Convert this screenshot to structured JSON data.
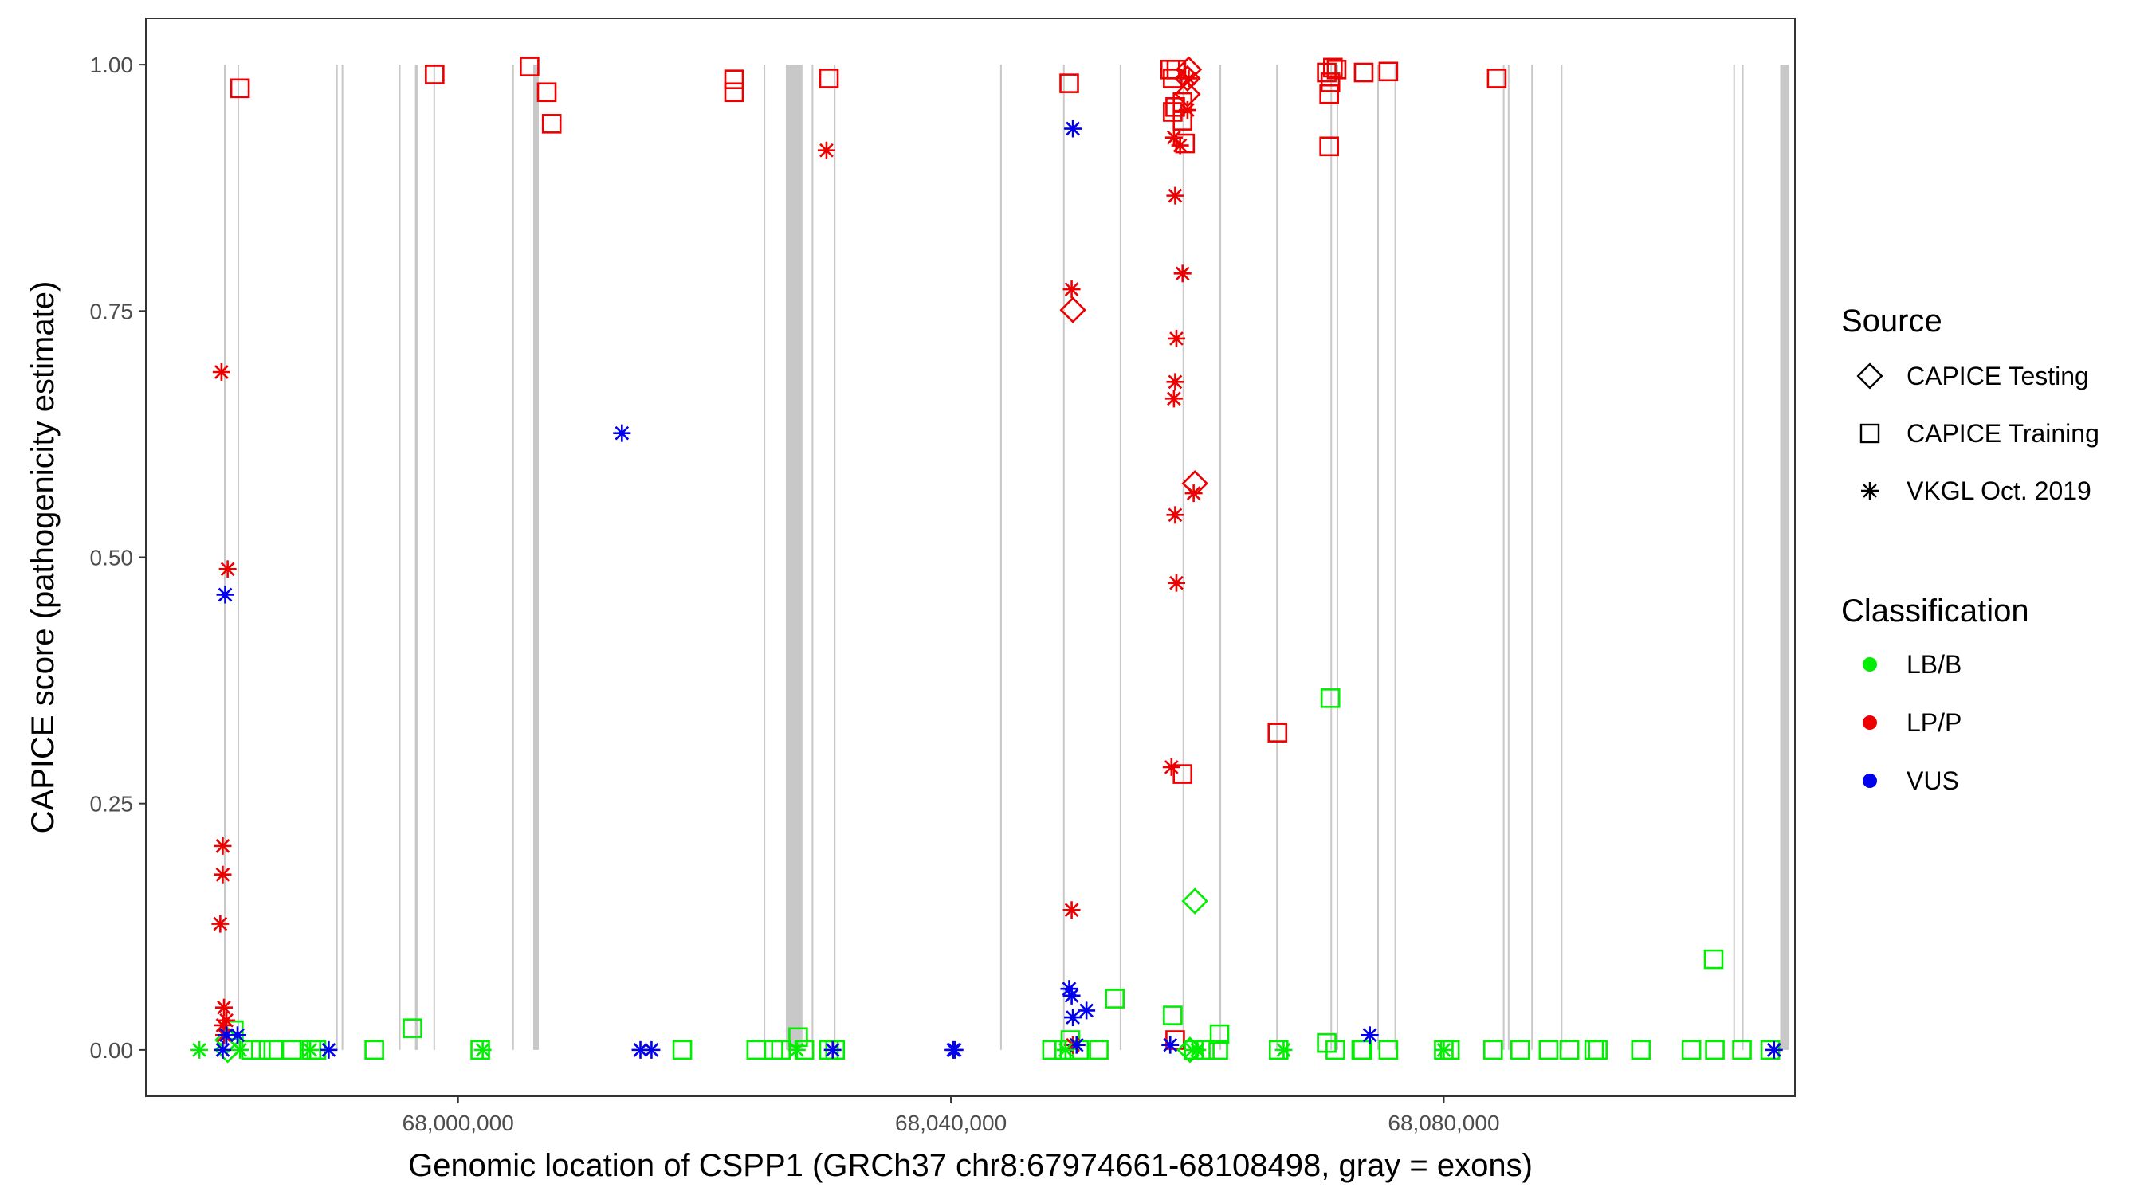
{
  "chart_data": {
    "type": "scatter",
    "xlabel": "Genomic location of CSPP1 (GRCh37 chr8:67974661-68108498, gray = exons)",
    "ylabel": "CAPICE score (pathogenicity estimate)",
    "xlim": [
      67974661,
      68108498
    ],
    "ylim": [
      -0.047,
      1.047
    ],
    "x_ticks": [
      68000000,
      68040000,
      68080000
    ],
    "x_tick_labels": [
      "68,000,000",
      "68,040,000",
      "68,080,000"
    ],
    "y_ticks": [
      0,
      0.25,
      0.5,
      0.75,
      1
    ],
    "y_tick_labels": [
      "0.00",
      "0.25",
      "0.50",
      "0.75",
      "1.00"
    ],
    "grid": false,
    "background": "#ffffff",
    "exons": [
      [
        67981000,
        67981050
      ],
      [
        67982100,
        67982150
      ],
      [
        67990100,
        67990150
      ],
      [
        67990550,
        67990600
      ],
      [
        67995200,
        67995250
      ],
      [
        67996500,
        67996750
      ],
      [
        67998000,
        67998050
      ],
      [
        68004400,
        68004450
      ],
      [
        68006100,
        68006550
      ],
      [
        68024800,
        68024850
      ],
      [
        68026600,
        68027950
      ],
      [
        68028700,
        68028750
      ],
      [
        68030500,
        68030550
      ],
      [
        68044000,
        68044050
      ],
      [
        68049100,
        68049150
      ],
      [
        68053700,
        68053750
      ],
      [
        68058800,
        68058850
      ],
      [
        68061800,
        68061850
      ],
      [
        68066400,
        68066450
      ],
      [
        68070800,
        68070850
      ],
      [
        68071300,
        68071350
      ],
      [
        68074600,
        68074650
      ],
      [
        68076000,
        68076050
      ],
      [
        68084800,
        68084850
      ],
      [
        68085200,
        68085250
      ],
      [
        68087100,
        68087150
      ],
      [
        68089500,
        68089550
      ],
      [
        68103500,
        68103550
      ],
      [
        68104200,
        68104250
      ],
      [
        68107300,
        68108000
      ]
    ],
    "exon_color": "#c8c8c8",
    "legend": {
      "position": "right",
      "source_title": "Source",
      "source_entries": [
        {
          "label": "CAPICE Testing",
          "shape": "diamond"
        },
        {
          "label": "CAPICE Training",
          "shape": "square"
        },
        {
          "label": "VKGL Oct. 2019",
          "shape": "asterisk"
        }
      ],
      "class_title": "Classification",
      "class_entries": [
        {
          "label": "LB/B",
          "color": "#00ee00"
        },
        {
          "label": "LP/P",
          "color": "#ee0000"
        },
        {
          "label": "VUS",
          "color": "#0000ee"
        }
      ]
    },
    "series": [
      {
        "source": "CAPICE Training",
        "classification": "LP/P",
        "points": [
          [
            67982300,
            0.976
          ],
          [
            67998100,
            0.99
          ],
          [
            68005800,
            0.998
          ],
          [
            68007200,
            0.972
          ],
          [
            68007600,
            0.94
          ],
          [
            68022400,
            0.985
          ],
          [
            68022400,
            0.972
          ],
          [
            68030100,
            0.986
          ],
          [
            68049600,
            0.981
          ],
          [
            68057800,
            0.995
          ],
          [
            68058000,
            0.986
          ],
          [
            68058300,
            0.995
          ],
          [
            68058200,
            0.957
          ],
          [
            68058000,
            0.952
          ],
          [
            68058800,
            0.962
          ],
          [
            68058800,
            0.943
          ],
          [
            68059000,
            0.92
          ],
          [
            68066500,
            0.322
          ],
          [
            68058800,
            0.28
          ],
          [
            68058200,
            0.01
          ],
          [
            68070500,
            0.992
          ],
          [
            68070700,
            0.97
          ],
          [
            68070800,
            0.982
          ],
          [
            68071000,
            0.997
          ],
          [
            68071300,
            0.995
          ],
          [
            68073500,
            0.992
          ],
          [
            68075500,
            0.993
          ],
          [
            68084300,
            0.986
          ],
          [
            68070700,
            0.917
          ]
        ]
      },
      {
        "source": "CAPICE Training",
        "classification": "LB/B",
        "points": [
          [
            67981800,
            0.02
          ],
          [
            67983200,
            0.0
          ],
          [
            67984000,
            0.0
          ],
          [
            67985000,
            0.0
          ],
          [
            67986500,
            0.0
          ],
          [
            67988100,
            0.0
          ],
          [
            67988500,
            0.0
          ],
          [
            67993200,
            0.0
          ],
          [
            67996300,
            0.022
          ],
          [
            68001800,
            0.0
          ],
          [
            68018200,
            0.0
          ],
          [
            68024200,
            0.0
          ],
          [
            68025600,
            0.0
          ],
          [
            68026200,
            0.0
          ],
          [
            68027600,
            0.013
          ],
          [
            68028100,
            0.0
          ],
          [
            68030100,
            0.0
          ],
          [
            68030600,
            0.0
          ],
          [
            68048200,
            0.0
          ],
          [
            68049200,
            0.0
          ],
          [
            68049700,
            0.01
          ],
          [
            68050400,
            0.0
          ],
          [
            68052000,
            0.0
          ],
          [
            68053300,
            0.052
          ],
          [
            68058000,
            0.035
          ],
          [
            68059700,
            0.0
          ],
          [
            68060600,
            0.0
          ],
          [
            68061700,
            0.0
          ],
          [
            68061800,
            0.016
          ],
          [
            68066600,
            0.0
          ],
          [
            68070500,
            0.007
          ],
          [
            68070800,
            0.357
          ],
          [
            68071200,
            0.0
          ],
          [
            68073300,
            0.0
          ],
          [
            68073400,
            0.0
          ],
          [
            68075500,
            0.0
          ],
          [
            68080000,
            0.0
          ],
          [
            68080500,
            0.0
          ],
          [
            68084000,
            0.0
          ],
          [
            68086200,
            0.0
          ],
          [
            68088500,
            0.0
          ],
          [
            68090200,
            0.0
          ],
          [
            68092200,
            0.0
          ],
          [
            68092500,
            0.0
          ],
          [
            68096000,
            0.0
          ],
          [
            68100100,
            0.0
          ],
          [
            68101900,
            0.092
          ],
          [
            68102000,
            0.0
          ],
          [
            68104200,
            0.0
          ],
          [
            68106500,
            0.0
          ]
        ]
      },
      {
        "source": "CAPICE Testing",
        "classification": "LP/P",
        "points": [
          [
            68059300,
            0.995
          ],
          [
            68059200,
            0.986
          ],
          [
            68059200,
            0.97
          ],
          [
            68059800,
            0.575
          ],
          [
            68049900,
            0.751
          ]
        ]
      },
      {
        "source": "CAPICE Testing",
        "classification": "LB/B",
        "points": [
          [
            68059800,
            0.151
          ],
          [
            67981300,
            0.01
          ],
          [
            67981300,
            0.0
          ],
          [
            68059400,
            0.0
          ]
        ]
      },
      {
        "source": "VKGL Oct. 2019",
        "classification": "LP/P",
        "points": [
          [
            67980800,
            0.688
          ],
          [
            67981300,
            0.488
          ],
          [
            67980900,
            0.207
          ],
          [
            67980900,
            0.178
          ],
          [
            67980700,
            0.128
          ],
          [
            67981000,
            0.043
          ],
          [
            67981200,
            0.03
          ],
          [
            67980900,
            0.025
          ],
          [
            67981000,
            0.015
          ],
          [
            68029900,
            0.913
          ],
          [
            68049800,
            0.772
          ],
          [
            68049800,
            0.142
          ],
          [
            68049900,
            0.005
          ],
          [
            68058100,
            0.926
          ],
          [
            68058200,
            0.867
          ],
          [
            68058300,
            0.722
          ],
          [
            68058200,
            0.678
          ],
          [
            68058100,
            0.661
          ],
          [
            68058200,
            0.543
          ],
          [
            68058300,
            0.474
          ],
          [
            68057900,
            0.287
          ],
          [
            68058600,
            0.918
          ],
          [
            68059200,
            0.954
          ],
          [
            68059300,
            0.986
          ],
          [
            68058800,
            0.788
          ],
          [
            68059700,
            0.565
          ]
        ]
      },
      {
        "source": "VKGL Oct. 2019",
        "classification": "VUS",
        "points": [
          [
            67981100,
            0.462
          ],
          [
            67980900,
            0.0
          ],
          [
            67981200,
            0.015
          ],
          [
            67982100,
            0.015
          ],
          [
            67989500,
            0.0
          ],
          [
            68013300,
            0.626
          ],
          [
            68014800,
            0.0
          ],
          [
            68015700,
            0.0
          ],
          [
            68030400,
            0.0
          ],
          [
            68040200,
            0.0
          ],
          [
            68040300,
            0.0
          ],
          [
            68049900,
            0.935
          ],
          [
            68049600,
            0.062
          ],
          [
            68049800,
            0.055
          ],
          [
            68049900,
            0.033
          ],
          [
            68050200,
            0.005
          ],
          [
            68051000,
            0.04
          ],
          [
            68057800,
            0.005
          ],
          [
            68074000,
            0.015
          ],
          [
            68106800,
            0.0
          ]
        ]
      },
      {
        "source": "VKGL Oct. 2019",
        "classification": "LB/B",
        "points": [
          [
            67979000,
            0.0
          ],
          [
            67982300,
            0.0
          ],
          [
            67988000,
            0.0
          ],
          [
            68002000,
            0.0
          ],
          [
            68027500,
            0.0
          ],
          [
            68049300,
            0.0
          ],
          [
            68059600,
            0.0
          ],
          [
            68060000,
            0.0
          ],
          [
            68067000,
            0.0
          ],
          [
            68080000,
            0.0
          ]
        ]
      }
    ]
  }
}
